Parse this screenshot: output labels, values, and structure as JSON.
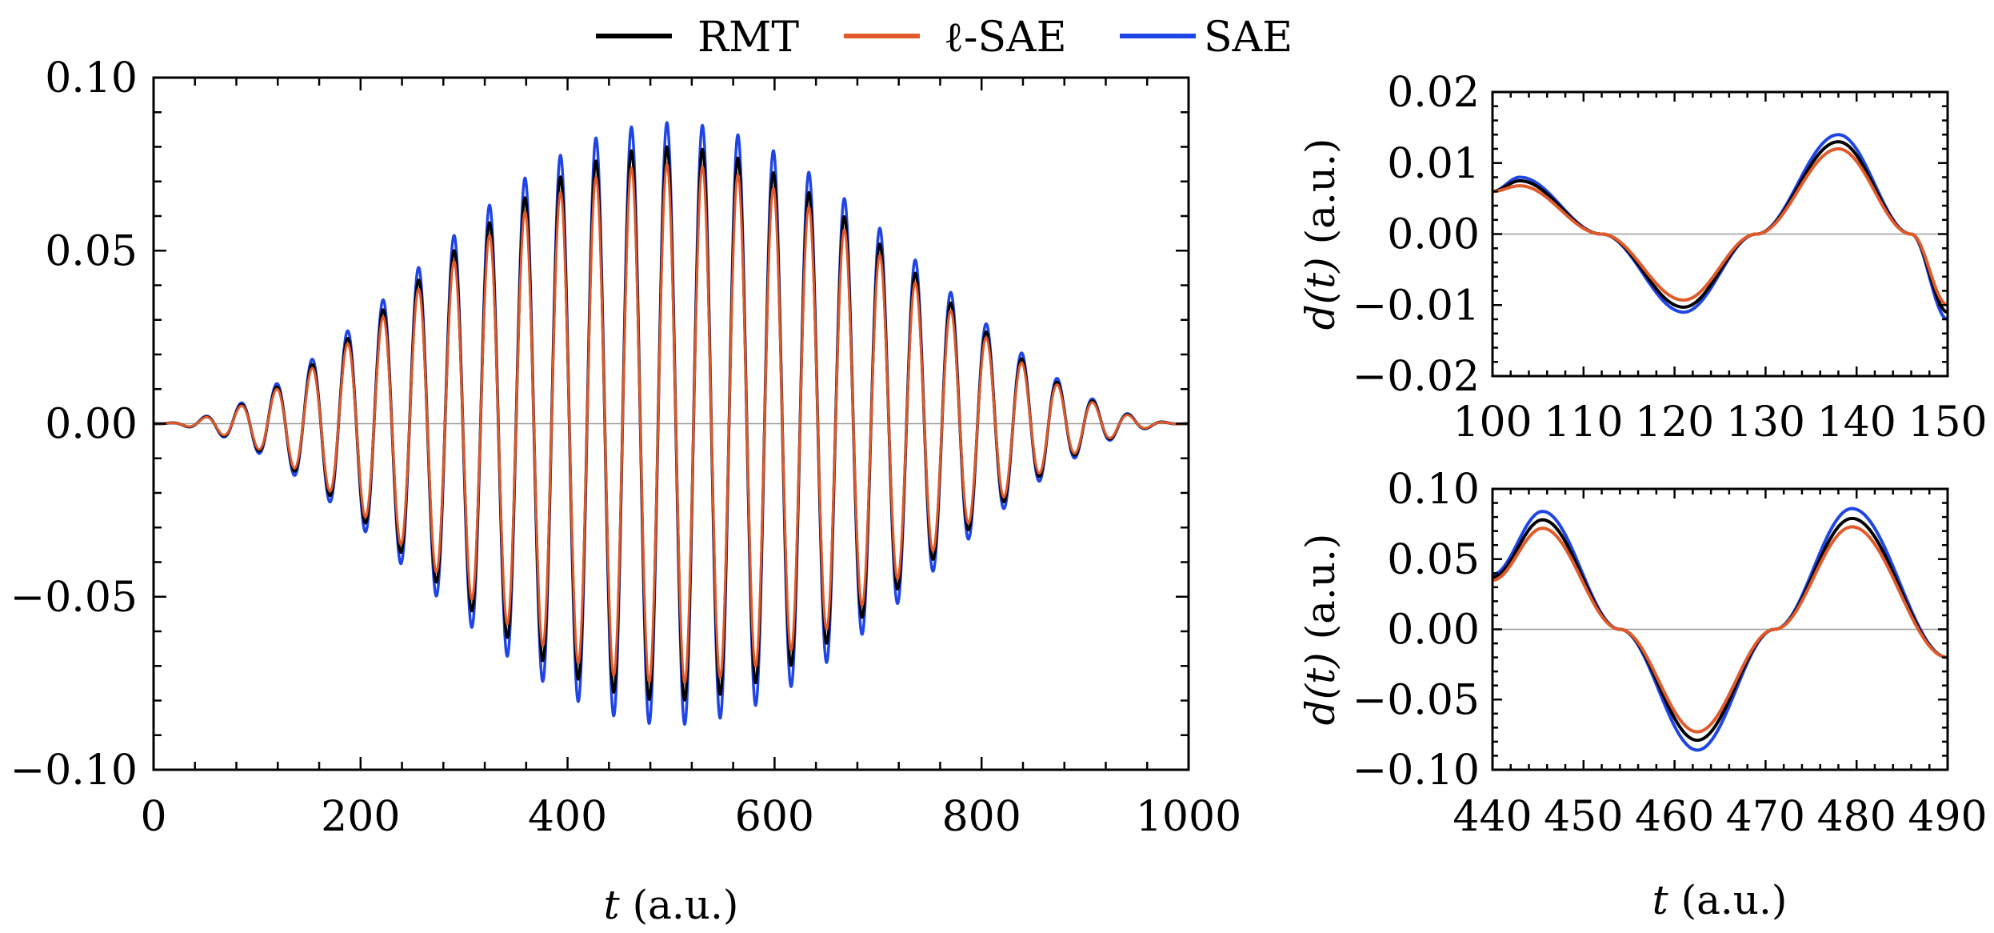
{
  "legend": [
    {
      "name": "RMT",
      "color": "#000000"
    },
    {
      "name": "ℓ-SAE",
      "color": "#e05a2b"
    },
    {
      "name": "SAE",
      "color": "#1f45e6"
    }
  ],
  "chart_data": [
    {
      "type": "line",
      "title": "",
      "xlabel_var": "t",
      "xlabel_unit": " (a.u.)",
      "ylabel": "",
      "xlim": [
        0,
        1000
      ],
      "ylim": [
        -0.1,
        0.1
      ],
      "xticks": [
        "0",
        "200",
        "400",
        "600",
        "800",
        "1000"
      ],
      "yticks": [
        "−0.10",
        "−0.05",
        "0.00",
        "0.05",
        "0.10"
      ],
      "signal": {
        "period_au": 34.3,
        "center_au": 496,
        "envelope": "sin^2 over 0–1000"
      },
      "series": [
        {
          "name": "RMT",
          "color": "#000000",
          "peak_amplitude": 0.08
        },
        {
          "name": "ℓ-SAE",
          "color": "#e05a2b",
          "peak_amplitude": 0.075
        },
        {
          "name": "SAE",
          "color": "#1f45e6",
          "peak_amplitude": 0.087
        }
      ]
    },
    {
      "type": "line",
      "title": "",
      "xlabel_var": "",
      "ylabel_var": "d(t)",
      "ylabel_unit": " (a.u.)",
      "xlim": [
        100,
        150
      ],
      "ylim": [
        -0.02,
        0.02
      ],
      "xticks": [
        "100",
        "110",
        "120",
        "130",
        "140",
        "150"
      ],
      "yticks": [
        "−0.02",
        "−0.01",
        "0.00",
        "0.01",
        "0.02"
      ],
      "series": [
        {
          "name": "RMT",
          "color": "#000000",
          "x": [
            100,
            103,
            112,
            121,
            129,
            138,
            146,
            150
          ],
          "y": [
            0.006,
            0.0075,
            0.0,
            -0.0103,
            0.0,
            0.013,
            0.0,
            -0.011
          ]
        },
        {
          "name": "ℓ-SAE",
          "color": "#e05a2b",
          "x": [
            100,
            103,
            112,
            121,
            129,
            138,
            146,
            150
          ],
          "y": [
            0.006,
            0.0068,
            0.0,
            -0.0093,
            0.0,
            0.012,
            0.0,
            -0.01
          ]
        },
        {
          "name": "SAE",
          "color": "#1f45e6",
          "x": [
            100,
            103,
            112,
            121,
            129,
            138,
            146,
            150
          ],
          "y": [
            0.006,
            0.008,
            0.0,
            -0.011,
            0.0,
            0.014,
            0.0,
            -0.012
          ]
        }
      ]
    },
    {
      "type": "line",
      "title": "",
      "xlabel_var": "t",
      "xlabel_unit": " (a.u.)",
      "ylabel_var": "d(t)",
      "ylabel_unit": " (a.u.)",
      "xlim": [
        440,
        490
      ],
      "ylim": [
        -0.1,
        0.1
      ],
      "xticks": [
        "440",
        "450",
        "460",
        "470",
        "480",
        "490"
      ],
      "yticks": [
        "−0.10",
        "−0.05",
        "0.00",
        "0.05",
        "0.10"
      ],
      "series": [
        {
          "name": "RMT",
          "color": "#000000",
          "x": [
            440,
            445.5,
            454,
            462.5,
            471,
            479.5,
            490
          ],
          "y": [
            0.037,
            0.078,
            0.0,
            -0.079,
            0.0,
            0.079,
            -0.02
          ]
        },
        {
          "name": "ℓ-SAE",
          "color": "#e05a2b",
          "x": [
            440,
            445.5,
            454,
            462.5,
            471,
            479.5,
            490
          ],
          "y": [
            0.035,
            0.072,
            0.0,
            -0.073,
            0.0,
            0.073,
            -0.02
          ]
        },
        {
          "name": "SAE",
          "color": "#1f45e6",
          "x": [
            440,
            445.5,
            454,
            462.5,
            471,
            479.5,
            490
          ],
          "y": [
            0.039,
            0.084,
            0.0,
            -0.086,
            0.0,
            0.086,
            -0.02
          ]
        }
      ]
    }
  ]
}
